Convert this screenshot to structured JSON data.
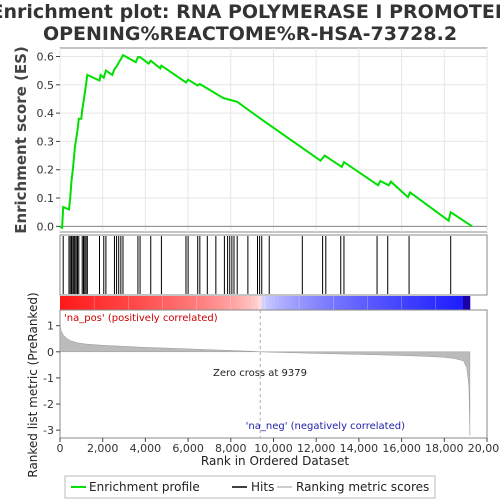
{
  "chart_data": {
    "type": "line",
    "title_line1": "Enrichment plot: RNA POLYMERASE I PROMOTER",
    "title_line2": "OPENING%REACTOME%R-HSA-73728.2",
    "ylabel_top": "Enrichment score (ES)",
    "ylabel_bottom": "Ranked list metric (PreRanked)",
    "xlabel": "Rank in Ordered Dataset",
    "xlim": [
      0,
      20000
    ],
    "es_ylim": [
      -0.02,
      0.63
    ],
    "metric_ylim": [
      -3.3,
      1.6
    ],
    "x_ticks": [
      0,
      2000,
      4000,
      6000,
      8000,
      10000,
      12000,
      14000,
      16000,
      18000,
      20000
    ],
    "x_tick_labels": [
      "0",
      "2,000",
      "4,000",
      "6,000",
      "8,000",
      "10,000",
      "12,000",
      "14,000",
      "16,000",
      "18,000",
      "20,000"
    ],
    "es_ticks": [
      0.0,
      0.1,
      0.2,
      0.3,
      0.4,
      0.5,
      0.6
    ],
    "es_tick_labels": [
      "0.0",
      "0.1",
      "0.2",
      "0.3",
      "0.4",
      "0.5",
      "0.6"
    ],
    "metric_ticks": [
      1,
      0,
      -1,
      -2,
      -3
    ],
    "metric_tick_labels": [
      "1",
      "0",
      "-1",
      "-2",
      "-3"
    ],
    "zero_cross_label": "Zero cross at 9379",
    "zero_cross": 9379,
    "pos_label": "'na_pos' (positively correlated)",
    "neg_label": "'na_neg' (negatively correlated)",
    "legend": {
      "enrichment": "Enrichment profile",
      "hits": "Hits",
      "ranking": "Ranking metric scores"
    },
    "colors": {
      "es_line": "#00e000",
      "hit": "#000000",
      "pos_text": "#cc0000",
      "neg_text": "#2222aa",
      "metric_fill": "#bbbbbb"
    },
    "n_genes": 19200,
    "es_points": [
      [
        0,
        0.0
      ],
      [
        100,
        -0.005
      ],
      [
        150,
        0.068
      ],
      [
        420,
        0.06
      ],
      [
        480,
        0.1
      ],
      [
        540,
        0.16
      ],
      [
        600,
        0.2
      ],
      [
        650,
        0.24
      ],
      [
        700,
        0.28
      ],
      [
        760,
        0.31
      ],
      [
        820,
        0.34
      ],
      [
        880,
        0.38
      ],
      [
        1000,
        0.38
      ],
      [
        1040,
        0.41
      ],
      [
        1100,
        0.44
      ],
      [
        1160,
        0.47
      ],
      [
        1220,
        0.5
      ],
      [
        1280,
        0.535
      ],
      [
        1850,
        0.515
      ],
      [
        1900,
        0.535
      ],
      [
        2050,
        0.525
      ],
      [
        2150,
        0.55
      ],
      [
        2450,
        0.535
      ],
      [
        2550,
        0.555
      ],
      [
        2650,
        0.565
      ],
      [
        2750,
        0.578
      ],
      [
        2850,
        0.59
      ],
      [
        2950,
        0.605
      ],
      [
        3550,
        0.58
      ],
      [
        3650,
        0.598
      ],
      [
        3750,
        0.598
      ],
      [
        4150,
        0.575
      ],
      [
        4250,
        0.585
      ],
      [
        4700,
        0.558
      ],
      [
        4750,
        0.568
      ],
      [
        5900,
        0.508
      ],
      [
        6000,
        0.518
      ],
      [
        6450,
        0.497
      ],
      [
        6550,
        0.503
      ],
      [
        7600,
        0.455
      ],
      [
        7700,
        0.452
      ],
      [
        8300,
        0.44
      ],
      [
        9400,
        0.38
      ],
      [
        11200,
        0.285
      ],
      [
        12200,
        0.232
      ],
      [
        12400,
        0.25
      ],
      [
        13200,
        0.21
      ],
      [
        13300,
        0.227
      ],
      [
        14900,
        0.145
      ],
      [
        15000,
        0.16
      ],
      [
        15400,
        0.145
      ],
      [
        15500,
        0.158
      ],
      [
        16300,
        0.103
      ],
      [
        16400,
        0.12
      ],
      [
        18200,
        0.02
      ],
      [
        18300,
        0.05
      ],
      [
        19300,
        0.0
      ]
    ],
    "hits": [
      150,
      420,
      480,
      540,
      600,
      650,
      700,
      760,
      820,
      880,
      1040,
      1100,
      1160,
      1220,
      1280,
      1850,
      2050,
      2150,
      2550,
      2650,
      2750,
      2850,
      2950,
      3650,
      3750,
      4250,
      4750,
      5900,
      6000,
      6450,
      6550,
      6900,
      7300,
      7700,
      7850,
      7950,
      8050,
      8150,
      8300,
      8800,
      9250,
      9350,
      9450,
      9800,
      11350,
      12300,
      12450,
      13150,
      13300,
      14850,
      15350,
      16350,
      18300
    ],
    "metric_profile": [
      [
        0,
        1.05
      ],
      [
        50,
        0.8
      ],
      [
        150,
        0.65
      ],
      [
        300,
        0.52
      ],
      [
        500,
        0.42
      ],
      [
        800,
        0.35
      ],
      [
        1200,
        0.3
      ],
      [
        2000,
        0.25
      ],
      [
        3000,
        0.21
      ],
      [
        4000,
        0.17
      ],
      [
        5000,
        0.14
      ],
      [
        6000,
        0.11
      ],
      [
        7000,
        0.08
      ],
      [
        8000,
        0.05
      ],
      [
        9000,
        0.02
      ],
      [
        9379,
        0.0
      ],
      [
        10000,
        -0.02
      ],
      [
        11000,
        -0.04
      ],
      [
        12000,
        -0.06
      ],
      [
        13000,
        -0.08
      ],
      [
        14000,
        -0.1
      ],
      [
        15000,
        -0.12
      ],
      [
        16000,
        -0.14
      ],
      [
        17000,
        -0.17
      ],
      [
        18000,
        -0.21
      ],
      [
        18500,
        -0.26
      ],
      [
        18900,
        -0.35
      ],
      [
        19050,
        -0.6
      ],
      [
        19150,
        -1.3
      ],
      [
        19200,
        -3.2
      ]
    ]
  }
}
